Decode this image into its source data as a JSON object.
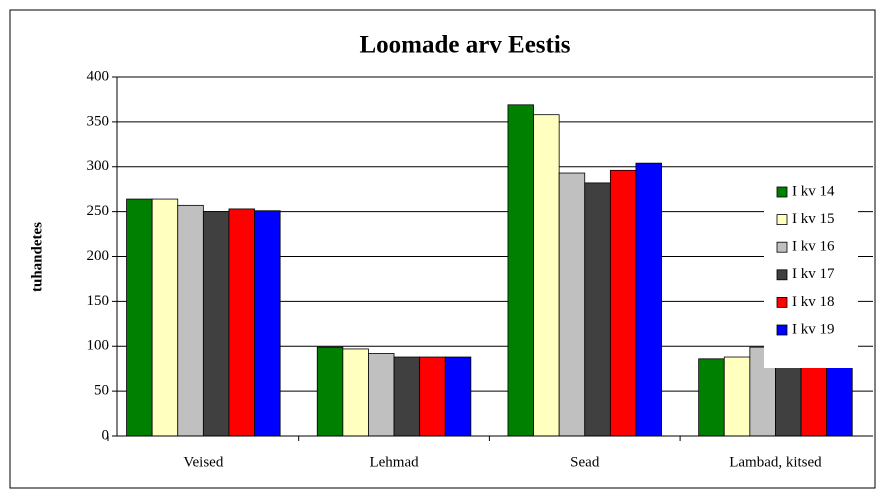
{
  "chart_data": {
    "type": "bar",
    "title": "Loomade arv Eestis",
    "y_label": "tuhandetes",
    "categories": [
      "Veised",
      "Lehmad",
      "Sead",
      "Lambad, kitsed"
    ],
    "series": [
      {
        "name": "I kv 14",
        "color": "#008000",
        "values": [
          264,
          99,
          369,
          86
        ]
      },
      {
        "name": "I kv 15",
        "color": "#ffffc0",
        "values": [
          264,
          97,
          358,
          88
        ]
      },
      {
        "name": "I kv 16",
        "color": "#c0c0c0",
        "values": [
          257,
          92,
          293,
          99
        ]
      },
      {
        "name": "I kv 17",
        "color": "#404040",
        "values": [
          250,
          88,
          282,
          92
        ]
      },
      {
        "name": "I kv 18",
        "color": "#ff0000",
        "values": [
          253,
          88,
          296,
          90
        ]
      },
      {
        "name": "I kv 19",
        "color": "#0000ff",
        "values": [
          251,
          88,
          304,
          88
        ]
      }
    ],
    "ylim": [
      0,
      400
    ],
    "yticks": [
      0,
      50,
      100,
      150,
      200,
      250,
      300,
      350,
      400
    ],
    "grid": true,
    "legend": "right"
  }
}
